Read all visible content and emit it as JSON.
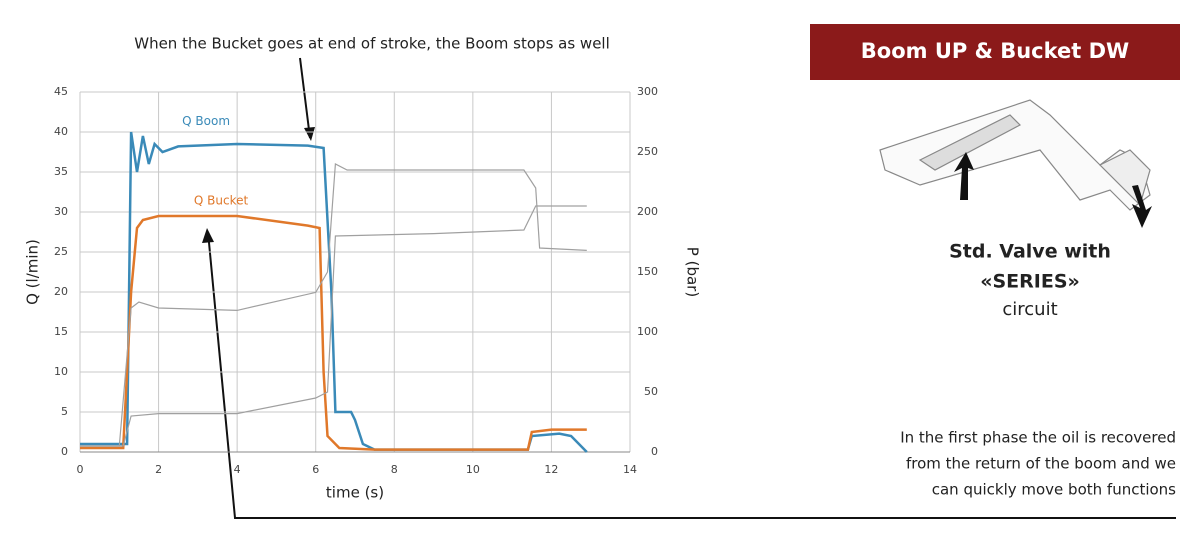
{
  "chart_data": {
    "type": "line",
    "annotation": "When the Bucket goes at end of stroke, the Boom stops as well",
    "box_title": "Boom UP & Bucket DW",
    "notes": [
      "Std. Valve with",
      "«SERIES»",
      "circuit"
    ],
    "caption": [
      "In the first phase the oil is recovered",
      "from the return of the boom and we",
      "can quickly move both functions"
    ],
    "xlabel": "time (s)",
    "ylabel": "Q (l/min)",
    "y2label": "P (bar)",
    "xlim": [
      0,
      14
    ],
    "xticks": [
      0,
      2,
      4,
      6,
      8,
      10,
      12,
      14
    ],
    "ylim": [
      0,
      45
    ],
    "yticks": [
      0,
      5,
      10,
      15,
      20,
      25,
      30,
      35,
      40,
      45
    ],
    "y2lim": [
      0,
      300
    ],
    "y2ticks": [
      0,
      50,
      100,
      150,
      200,
      250,
      300
    ],
    "grid": true,
    "series": [
      {
        "name": "Q Boom",
        "color": "#3a8ab8",
        "x": [
          0,
          1,
          1.2,
          1.3,
          1.45,
          1.6,
          1.75,
          1.9,
          2.1,
          2.5,
          4,
          5.8,
          6.2,
          6.4,
          6.5,
          6.9,
          7.0,
          7.2,
          7.5,
          11.4,
          11.5,
          12.2,
          12.5,
          12.9
        ],
        "values": [
          1,
          1,
          1,
          40,
          35,
          39.5,
          36,
          38.5,
          37.5,
          38.2,
          38.5,
          38.3,
          38,
          20,
          5,
          5,
          4,
          1,
          0.3,
          0.3,
          2,
          2.3,
          2,
          0
        ]
      },
      {
        "name": "Q Bucket",
        "color": "#e0782a",
        "x": [
          0,
          1,
          1.1,
          1.3,
          1.45,
          1.6,
          2,
          4,
          5.8,
          6.1,
          6.2,
          6.3,
          6.6,
          7.5,
          11.4,
          11.5,
          12,
          12.9
        ],
        "values": [
          0.5,
          0.5,
          0.5,
          20,
          28,
          29,
          29.5,
          29.5,
          28.3,
          28,
          10,
          2,
          0.5,
          0.3,
          0.3,
          2.5,
          2.8,
          2.8
        ]
      },
      {
        "color": "#a0a0a0",
        "axis": "y2",
        "x": [
          0,
          1,
          1.3,
          1.5,
          2,
          4,
          6,
          6.3,
          6.5,
          6.8,
          11.3,
          11.6,
          11.7,
          12.9
        ],
        "values": [
          5,
          5,
          120,
          125,
          120,
          118,
          133,
          150,
          240,
          235,
          235,
          220,
          170,
          168
        ]
      },
      {
        "color": "#a0a0a0",
        "axis": "y2",
        "x": [
          0,
          1.1,
          1.3,
          2,
          4,
          6,
          6.3,
          6.5,
          9,
          11.3,
          11.6,
          12.9
        ],
        "values": [
          5,
          5,
          30,
          32,
          32,
          45,
          50,
          180,
          182,
          185,
          205,
          205
        ]
      }
    ]
  }
}
